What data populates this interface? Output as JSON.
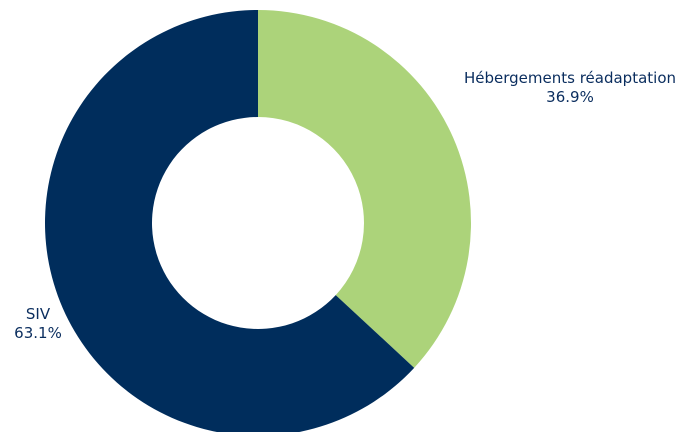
{
  "chart_data": {
    "type": "pie",
    "variant": "donut",
    "slices": [
      {
        "label": "Hébergements réadaptation",
        "percent_label": "36.9%",
        "value": 36.9,
        "color": "#acd37a"
      },
      {
        "label": "SIV",
        "percent_label": "63.1%",
        "value": 63.1,
        "color": "#002d5c"
      }
    ],
    "legend": "none",
    "label_color": "#0a2d5e"
  }
}
